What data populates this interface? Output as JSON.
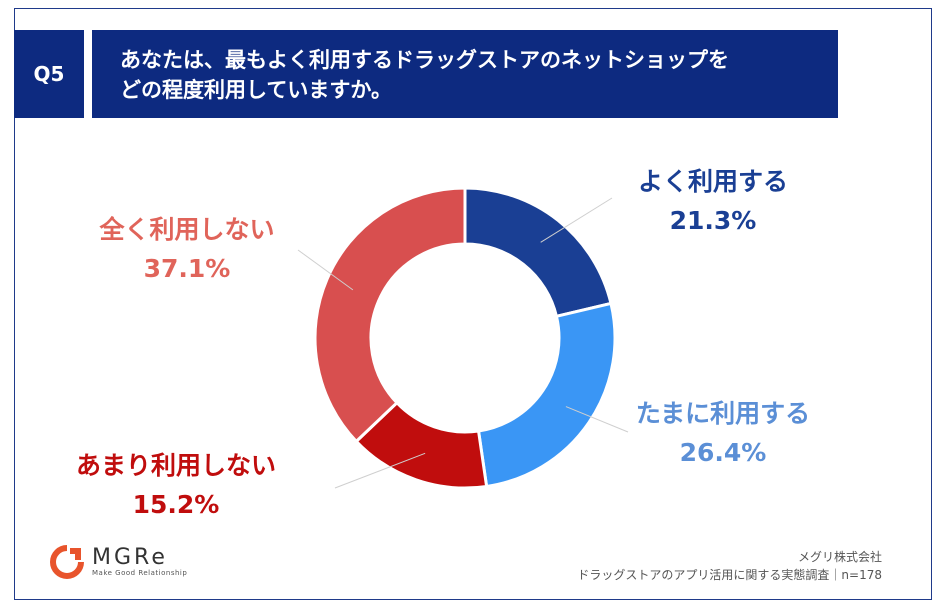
{
  "question": {
    "number": "Q5",
    "line1": "あなたは、最もよく利用するドラッグストアのネットショップを",
    "line2": "どの程度利用していますか。"
  },
  "chart_data": {
    "type": "pie",
    "variant": "donut",
    "series": [
      {
        "name": "よく利用する",
        "value": 21.3,
        "label": "21.3%",
        "color": "#1a3f94",
        "text_color": "#1a3f94"
      },
      {
        "name": "たまに利用する",
        "value": 26.4,
        "label": "26.4%",
        "color": "#3a96f5",
        "text_color": "#5b8fd6"
      },
      {
        "name": "あまり利用しない",
        "value": 15.2,
        "label": "15.2%",
        "color": "#c00d0d",
        "text_color": "#c00d0d"
      },
      {
        "name": "全く利用しない",
        "value": 37.1,
        "label": "37.1%",
        "color": "#d84f4f",
        "text_color": "#e0645a"
      }
    ]
  },
  "footer": {
    "logo_text": "MGRe",
    "logo_tagline": "Make Good Relationship",
    "company": "メグリ株式会社",
    "survey": "ドラッグストアのアプリ活用に関する実態調査｜n=178"
  },
  "colors": {
    "header_bg": "#0d2a80",
    "frame": "#1f3a8a",
    "logo_orange": "#e8542c"
  }
}
